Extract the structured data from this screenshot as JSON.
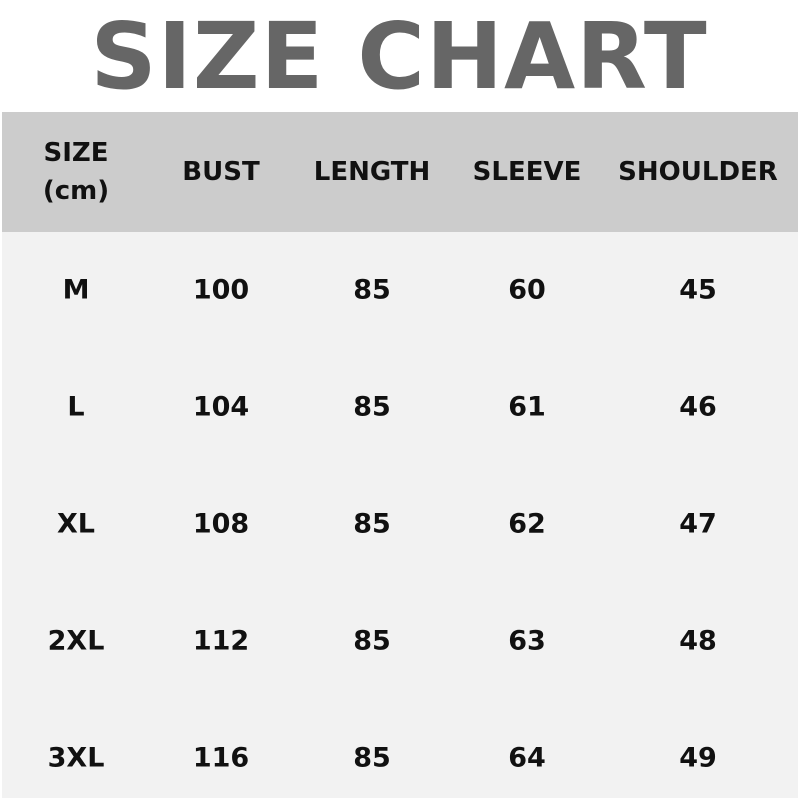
{
  "title": "SIZE CHART",
  "colors": {
    "title": "#666666",
    "header_bg": "#cccccc",
    "body_bg": "#f2f2f2",
    "text": "#111111"
  },
  "columns": [
    "SIZE (cm)",
    "BUST",
    "LENGTH",
    "SLEEVE",
    "SHOULDER"
  ],
  "column_header_lines": {
    "size_line1": "SIZE",
    "size_line2": "(cm)"
  },
  "rows": [
    [
      "M",
      "100",
      "85",
      "60",
      "45"
    ],
    [
      "L",
      "104",
      "85",
      "61",
      "46"
    ],
    [
      "XL",
      "108",
      "85",
      "62",
      "47"
    ],
    [
      "2XL",
      "112",
      "85",
      "63",
      "48"
    ],
    [
      "3XL",
      "116",
      "85",
      "64",
      "49"
    ]
  ]
}
